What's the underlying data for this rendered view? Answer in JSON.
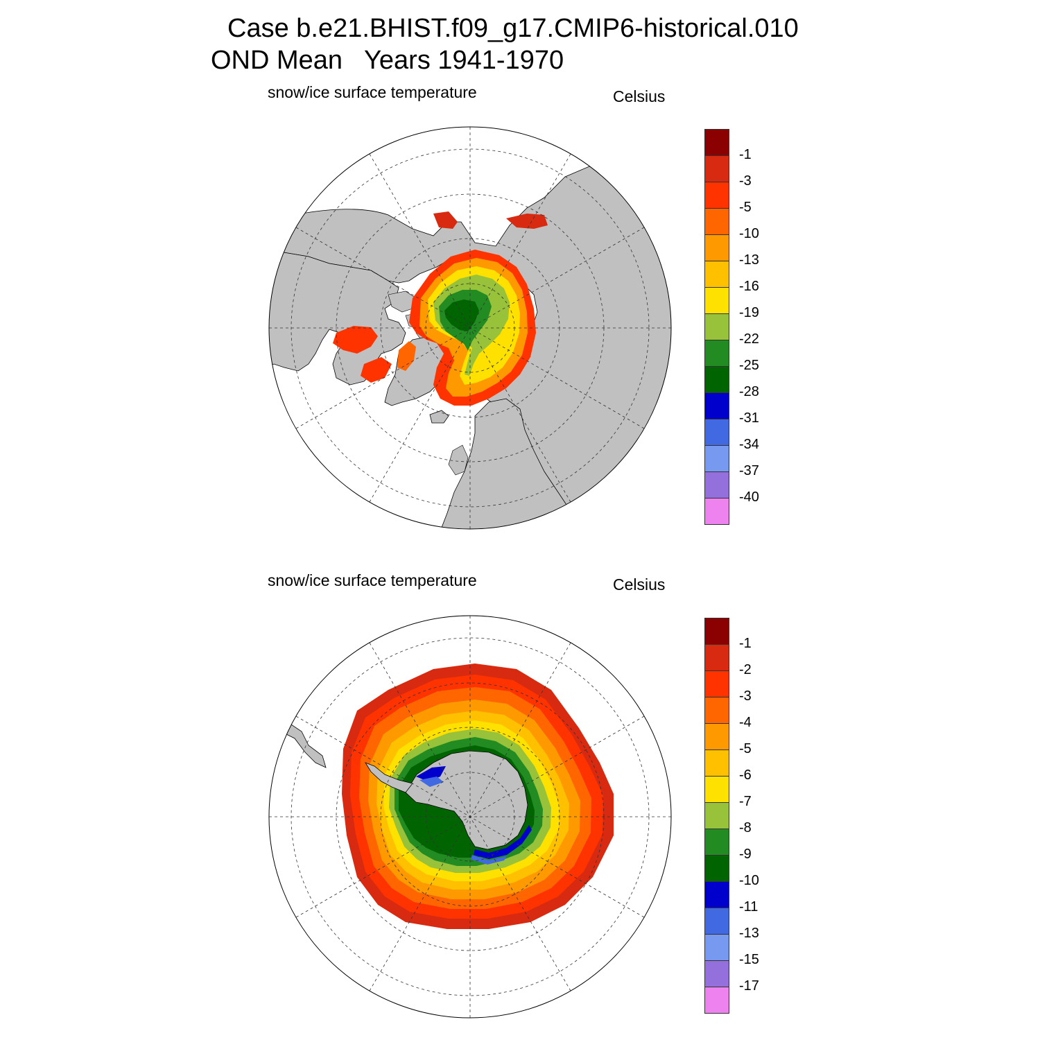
{
  "title": {
    "line1": "Case b.e21.BHIST.f09_g17.CMIP6-historical.010",
    "line2": "OND Mean   Years 1941-1970"
  },
  "panels": [
    {
      "name": "north",
      "left_label": "snow/ice surface temperature",
      "right_label": "Celsius",
      "colorbar": {
        "colors": [
          "#8b0000",
          "#d82a10",
          "#ff3300",
          "#ff6600",
          "#ff9900",
          "#ffc000",
          "#ffe100",
          "#98c23a",
          "#228b22",
          "#006400",
          "#0000cd",
          "#4169e1",
          "#7799f0",
          "#9370db",
          "#ee82ee"
        ],
        "labels": [
          "-1",
          "-3",
          "-5",
          "-10",
          "-13",
          "-16",
          "-19",
          "-22",
          "-25",
          "-28",
          "-31",
          "-34",
          "-37",
          "-40"
        ]
      }
    },
    {
      "name": "south",
      "left_label": "snow/ice surface temperature",
      "right_label": "Celsius",
      "colorbar": {
        "colors": [
          "#8b0000",
          "#d82a10",
          "#ff3300",
          "#ff6600",
          "#ff9900",
          "#ffc000",
          "#ffe100",
          "#98c23a",
          "#228b22",
          "#006400",
          "#0000cd",
          "#4169e1",
          "#7799f0",
          "#9370db",
          "#ee82ee"
        ],
        "labels": [
          "-1",
          "-2",
          "-3",
          "-4",
          "-5",
          "-6",
          "-7",
          "-8",
          "-9",
          "-10",
          "-11",
          "-13",
          "-15",
          "-17"
        ]
      }
    }
  ],
  "colors": {
    "land": "#c0c0c0",
    "ocean": "#ffffff",
    "grid": "#333333"
  }
}
